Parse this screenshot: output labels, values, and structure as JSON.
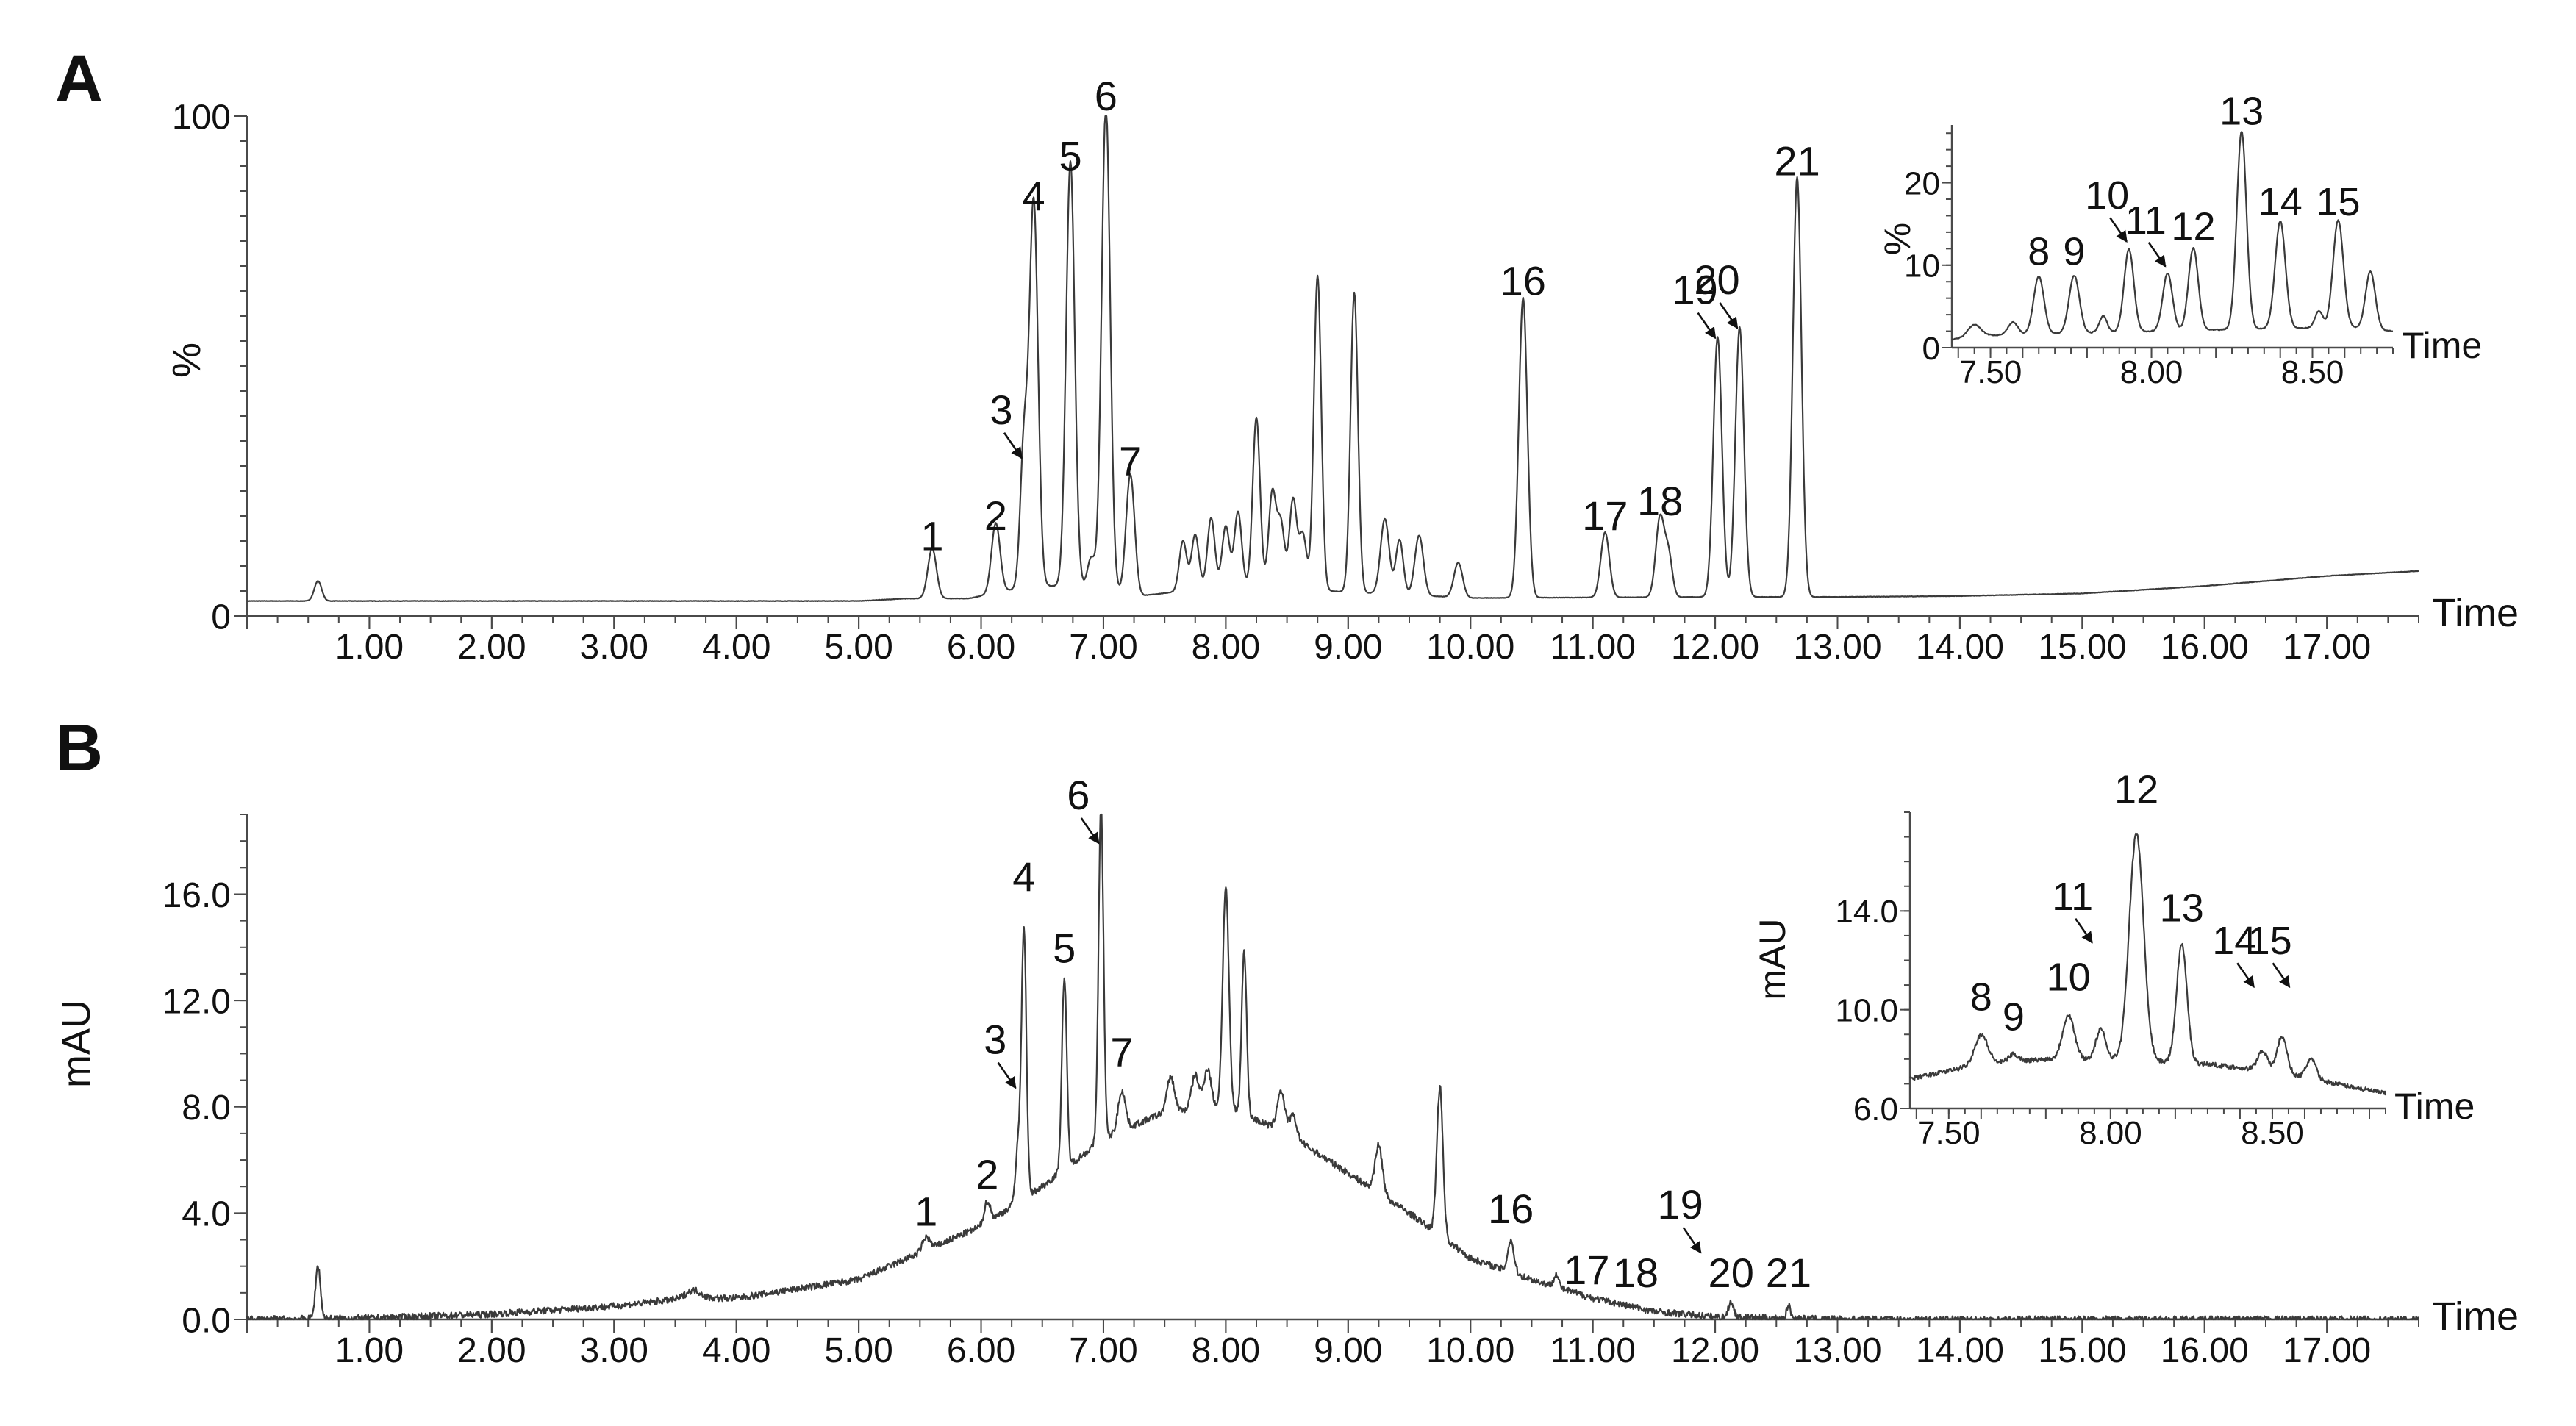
{
  "chart_data": [
    {
      "type": "line",
      "panel_label": "A",
      "xlabel": "Time",
      "ylabel": "%",
      "xlim": [
        0,
        17.75
      ],
      "ylim": [
        0,
        100
      ],
      "x_ticks": [
        "1.00",
        "2.00",
        "3.00",
        "4.00",
        "5.00",
        "6.00",
        "7.00",
        "8.00",
        "9.00",
        "10.00",
        "11.00",
        "12.00",
        "13.00",
        "14.00",
        "15.00",
        "16.00",
        "17.00"
      ],
      "y_ticks": [
        "0",
        "100"
      ],
      "baseline": [
        [
          0.0,
          3
        ],
        [
          1.0,
          3
        ],
        [
          3.0,
          3
        ],
        [
          5.0,
          3
        ],
        [
          5.4,
          3.5
        ],
        [
          5.9,
          3.5
        ],
        [
          6.4,
          6
        ],
        [
          6.8,
          6
        ],
        [
          7.3,
          4
        ],
        [
          8.0,
          6
        ],
        [
          10.0,
          3.6
        ],
        [
          12.0,
          3.8
        ],
        [
          13.0,
          3.8
        ],
        [
          14.0,
          4.0
        ],
        [
          15.0,
          4.5
        ],
        [
          16.0,
          6
        ],
        [
          17.0,
          8
        ],
        [
          17.75,
          9
        ]
      ],
      "peaks": [
        {
          "x": 0.58,
          "h": 4,
          "w": 0.03
        },
        {
          "x": 5.6,
          "h": 10,
          "w": 0.035
        },
        {
          "x": 6.12,
          "h": 14,
          "w": 0.035
        },
        {
          "x": 6.35,
          "h": 28,
          "w": 0.03
        },
        {
          "x": 6.43,
          "h": 77,
          "w": 0.035
        },
        {
          "x": 6.73,
          "h": 85,
          "w": 0.035
        },
        {
          "x": 6.9,
          "h": 6,
          "w": 0.03
        },
        {
          "x": 7.02,
          "h": 97,
          "w": 0.035
        },
        {
          "x": 7.22,
          "h": 24,
          "w": 0.035
        },
        {
          "x": 7.65,
          "h": 10,
          "w": 0.03
        },
        {
          "x": 7.75,
          "h": 11,
          "w": 0.03
        },
        {
          "x": 7.88,
          "h": 14,
          "w": 0.03
        },
        {
          "x": 8.0,
          "h": 12,
          "w": 0.03
        },
        {
          "x": 8.1,
          "h": 15,
          "w": 0.03
        },
        {
          "x": 8.25,
          "h": 34,
          "w": 0.03
        },
        {
          "x": 8.38,
          "h": 19,
          "w": 0.03
        },
        {
          "x": 8.45,
          "h": 13,
          "w": 0.03
        },
        {
          "x": 8.55,
          "h": 18,
          "w": 0.03
        },
        {
          "x": 8.63,
          "h": 11,
          "w": 0.03
        },
        {
          "x": 8.75,
          "h": 63,
          "w": 0.03
        },
        {
          "x": 9.05,
          "h": 60,
          "w": 0.03
        },
        {
          "x": 9.3,
          "h": 15,
          "w": 0.035
        },
        {
          "x": 9.42,
          "h": 11,
          "w": 0.03
        },
        {
          "x": 9.58,
          "h": 12,
          "w": 0.035
        },
        {
          "x": 9.9,
          "h": 7,
          "w": 0.035
        },
        {
          "x": 10.43,
          "h": 60,
          "w": 0.035
        },
        {
          "x": 11.1,
          "h": 13,
          "w": 0.035
        },
        {
          "x": 11.55,
          "h": 16,
          "w": 0.035
        },
        {
          "x": 11.62,
          "h": 8,
          "w": 0.03
        },
        {
          "x": 12.02,
          "h": 52,
          "w": 0.035
        },
        {
          "x": 12.2,
          "h": 54,
          "w": 0.035
        },
        {
          "x": 12.67,
          "h": 84,
          "w": 0.035
        }
      ],
      "peak_labels": [
        {
          "label": "1",
          "x": 5.6,
          "y": 12
        },
        {
          "label": "2",
          "x": 6.12,
          "y": 16
        },
        {
          "label": "3",
          "x": 6.35,
          "y": 31
        },
        {
          "label": "4",
          "x": 6.43,
          "y": 80
        },
        {
          "label": "5",
          "x": 6.73,
          "y": 88
        },
        {
          "label": "6",
          "x": 7.02,
          "y": 100
        },
        {
          "label": "7",
          "x": 7.22,
          "y": 27
        },
        {
          "label": "16",
          "x": 10.43,
          "y": 63
        },
        {
          "label": "17",
          "x": 11.1,
          "y": 16
        },
        {
          "label": "18",
          "x": 11.55,
          "y": 19
        },
        {
          "label": "19",
          "x": 12.02,
          "y": 55
        },
        {
          "label": "20",
          "x": 12.2,
          "y": 57
        },
        {
          "label": "21",
          "x": 12.67,
          "y": 87
        }
      ],
      "inset": {
        "xlabel": "Time",
        "ylabel": "%",
        "xlim": [
          7.38,
          8.75
        ],
        "ylim": [
          0,
          27
        ],
        "x_ticks": [
          "7.50",
          "8.00",
          "8.50"
        ],
        "y_ticks": [
          "0",
          "10",
          "20"
        ],
        "baseline": [
          [
            7.38,
            1
          ],
          [
            7.5,
            1.5
          ],
          [
            8.0,
            2
          ],
          [
            8.6,
            2.5
          ],
          [
            8.75,
            2
          ]
        ],
        "peaks": [
          {
            "x": 7.45,
            "h": 1.5,
            "w": 0.02
          },
          {
            "x": 7.57,
            "h": 1.5,
            "w": 0.015
          },
          {
            "x": 7.65,
            "h": 7,
            "w": 0.016
          },
          {
            "x": 7.76,
            "h": 7,
            "w": 0.016
          },
          {
            "x": 7.85,
            "h": 2,
            "w": 0.012
          },
          {
            "x": 7.93,
            "h": 10,
            "w": 0.015
          },
          {
            "x": 8.05,
            "h": 7,
            "w": 0.015
          },
          {
            "x": 8.13,
            "h": 10,
            "w": 0.015
          },
          {
            "x": 8.28,
            "h": 24,
            "w": 0.015
          },
          {
            "x": 8.4,
            "h": 13,
            "w": 0.016
          },
          {
            "x": 8.52,
            "h": 2,
            "w": 0.012
          },
          {
            "x": 8.58,
            "h": 13,
            "w": 0.016
          },
          {
            "x": 8.68,
            "h": 7,
            "w": 0.015
          }
        ],
        "peak_labels": [
          {
            "label": "8",
            "x": 7.65,
            "y": 9.5
          },
          {
            "label": "9",
            "x": 7.76,
            "y": 9.5
          },
          {
            "label": "10",
            "x": 7.93,
            "y": 12.5
          },
          {
            "label": "11",
            "x": 8.05,
            "y": 9.5
          },
          {
            "label": "12",
            "x": 8.13,
            "y": 12.5
          },
          {
            "label": "13",
            "x": 8.28,
            "y": 26.5
          },
          {
            "label": "14",
            "x": 8.4,
            "y": 15.5
          },
          {
            "label": "15",
            "x": 8.58,
            "y": 15.5
          }
        ]
      }
    },
    {
      "type": "line",
      "panel_label": "B",
      "xlabel": "Time",
      "ylabel": "mAU",
      "xlim": [
        0,
        17.75
      ],
      "ylim": [
        0,
        19
      ],
      "x_ticks": [
        "1.00",
        "2.00",
        "3.00",
        "4.00",
        "5.00",
        "6.00",
        "7.00",
        "8.00",
        "9.00",
        "10.00",
        "11.00",
        "12.00",
        "13.00",
        "14.00",
        "15.00",
        "16.00",
        "17.00"
      ],
      "y_ticks": [
        "0.0",
        "4.0",
        "8.0",
        "12.0",
        "16.0"
      ],
      "baseline": [
        [
          0.0,
          0
        ],
        [
          1.0,
          0.05
        ],
        [
          2.0,
          0.2
        ],
        [
          3.0,
          0.5
        ],
        [
          3.6,
          0.8
        ],
        [
          4.0,
          0.8
        ],
        [
          5.0,
          1.5
        ],
        [
          5.5,
          2.5
        ],
        [
          6.0,
          3.5
        ],
        [
          6.5,
          5
        ],
        [
          7.0,
          6.8
        ],
        [
          7.5,
          7.8
        ],
        [
          8.0,
          8.0
        ],
        [
          8.5,
          7.0
        ],
        [
          9.0,
          5.5
        ],
        [
          9.5,
          4.0
        ],
        [
          10.0,
          2.3
        ],
        [
          10.5,
          1.5
        ],
        [
          11.0,
          0.8
        ],
        [
          11.5,
          0.3
        ],
        [
          12.0,
          0.1
        ],
        [
          12.5,
          0.05
        ],
        [
          13.0,
          0
        ],
        [
          17.75,
          0
        ]
      ],
      "peaks": [
        {
          "x": 0.58,
          "h": 2,
          "w": 0.02
        },
        {
          "x": 3.65,
          "h": 0.3,
          "w": 0.06
        },
        {
          "x": 5.55,
          "h": 0.5,
          "w": 0.03
        },
        {
          "x": 6.05,
          "h": 0.8,
          "w": 0.025
        },
        {
          "x": 6.3,
          "h": 2,
          "w": 0.02
        },
        {
          "x": 6.35,
          "h": 10.2,
          "w": 0.02
        },
        {
          "x": 6.68,
          "h": 7.2,
          "w": 0.02
        },
        {
          "x": 6.98,
          "h": 12.6,
          "w": 0.02
        },
        {
          "x": 7.15,
          "h": 1.5,
          "w": 0.03
        },
        {
          "x": 7.55,
          "h": 1.3,
          "w": 0.03
        },
        {
          "x": 7.75,
          "h": 1.3,
          "w": 0.03
        },
        {
          "x": 7.85,
          "h": 1.5,
          "w": 0.03
        },
        {
          "x": 8.0,
          "h": 8.3,
          "w": 0.025
        },
        {
          "x": 8.15,
          "h": 6.2,
          "w": 0.02
        },
        {
          "x": 8.45,
          "h": 1.5,
          "w": 0.03
        },
        {
          "x": 8.55,
          "h": 0.8,
          "w": 0.03
        },
        {
          "x": 9.25,
          "h": 1.8,
          "w": 0.03
        },
        {
          "x": 9.75,
          "h": 5.6,
          "w": 0.025
        },
        {
          "x": 10.33,
          "h": 1.2,
          "w": 0.025
        },
        {
          "x": 10.7,
          "h": 0.5,
          "w": 0.02
        },
        {
          "x": 12.13,
          "h": 0.6,
          "w": 0.02
        },
        {
          "x": 12.6,
          "h": 0.5,
          "w": 0.015
        }
      ],
      "peak_labels": [
        {
          "label": "1",
          "x": 5.55,
          "y": 3.3
        },
        {
          "label": "2",
          "x": 6.05,
          "y": 4.7
        },
        {
          "label": "3",
          "x": 6.3,
          "y": 8.6
        },
        {
          "label": "4",
          "x": 6.35,
          "y": 15.9
        },
        {
          "label": "5",
          "x": 6.68,
          "y": 13.2
        },
        {
          "label": "6",
          "x": 6.98,
          "y": 17.8
        },
        {
          "label": "7",
          "x": 7.15,
          "y": 9.3
        },
        {
          "label": "16",
          "x": 10.33,
          "y": 3.4
        },
        {
          "label": "17",
          "x": 10.95,
          "y": 1.1
        },
        {
          "label": "18",
          "x": 11.35,
          "y": 1.0
        },
        {
          "label": "19",
          "x": 11.9,
          "y": 2.4
        },
        {
          "label": "20",
          "x": 12.13,
          "y": 1.0
        },
        {
          "label": "21",
          "x": 12.6,
          "y": 1.0
        }
      ],
      "inset": {
        "xlabel": "Time",
        "ylabel": "mAU",
        "xlim": [
          7.38,
          8.85
        ],
        "ylim": [
          6,
          18
        ],
        "x_ticks": [
          "7.50",
          "8.00",
          "8.50"
        ],
        "y_ticks": [
          "6.0",
          "10.0",
          "14.0"
        ],
        "baseline": [
          [
            7.38,
            7.2
          ],
          [
            7.6,
            7.8
          ],
          [
            7.8,
            8.0
          ],
          [
            8.0,
            8.0
          ],
          [
            8.3,
            7.8
          ],
          [
            8.5,
            7.5
          ],
          [
            8.7,
            7.0
          ],
          [
            8.85,
            6.6
          ]
        ],
        "peaks": [
          {
            "x": 7.6,
            "h": 1.2,
            "w": 0.02
          },
          {
            "x": 7.7,
            "h": 0.3,
            "w": 0.015
          },
          {
            "x": 7.87,
            "h": 1.8,
            "w": 0.018
          },
          {
            "x": 7.97,
            "h": 1.2,
            "w": 0.015
          },
          {
            "x": 8.08,
            "h": 9.2,
            "w": 0.022
          },
          {
            "x": 8.22,
            "h": 4.8,
            "w": 0.016
          },
          {
            "x": 8.47,
            "h": 0.8,
            "w": 0.015
          },
          {
            "x": 8.53,
            "h": 1.5,
            "w": 0.015
          },
          {
            "x": 8.62,
            "h": 0.8,
            "w": 0.015
          }
        ],
        "peak_labels": [
          {
            "label": "8",
            "x": 7.6,
            "y": 9.8
          },
          {
            "label": "9",
            "x": 7.7,
            "y": 9.0
          },
          {
            "label": "10",
            "x": 7.87,
            "y": 10.6
          },
          {
            "label": "11",
            "x": 7.95,
            "y": 12.6
          },
          {
            "label": "12",
            "x": 8.08,
            "y": 18.2
          },
          {
            "label": "13",
            "x": 8.22,
            "y": 13.4
          },
          {
            "label": "14",
            "x": 8.45,
            "y": 10.8
          },
          {
            "label": "15",
            "x": 8.56,
            "y": 10.8
          }
        ]
      }
    }
  ]
}
